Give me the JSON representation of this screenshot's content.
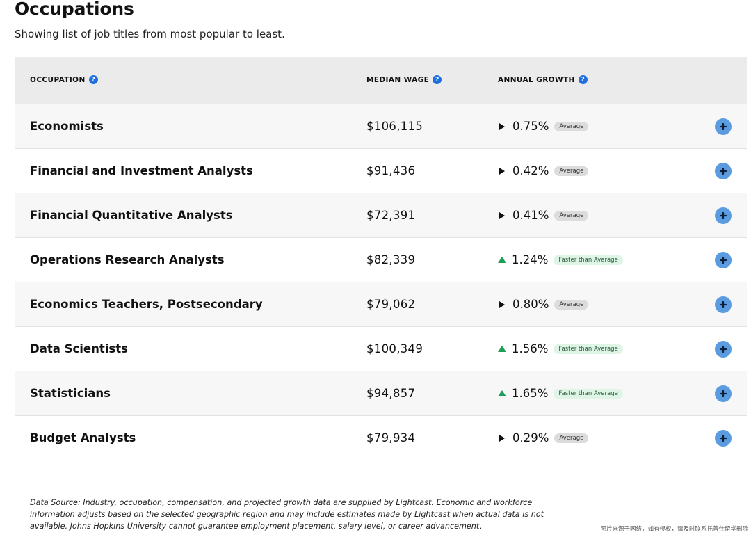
{
  "header": {
    "title": "Occupations",
    "subtitle": "Showing list of job titles from most popular to least."
  },
  "table": {
    "columns": {
      "occupation": "OCCUPATION",
      "median_wage": "MEDIAN WAGE",
      "annual_growth": "ANNUAL GROWTH",
      "help_glyph": "?"
    },
    "rows": [
      {
        "title": "Economists",
        "wage": "$106,115",
        "growth": "0.75%",
        "trend": "flat",
        "badge": "Average"
      },
      {
        "title": "Financial and Investment Analysts",
        "wage": "$91,436",
        "growth": "0.42%",
        "trend": "flat",
        "badge": "Average"
      },
      {
        "title": "Financial Quantitative Analysts",
        "wage": "$72,391",
        "growth": "0.41%",
        "trend": "flat",
        "badge": "Average"
      },
      {
        "title": "Operations Research Analysts",
        "wage": "$82,339",
        "growth": "1.24%",
        "trend": "up",
        "badge": "Faster than Average"
      },
      {
        "title": "Economics Teachers, Postsecondary",
        "wage": "$79,062",
        "growth": "0.80%",
        "trend": "flat",
        "badge": "Average"
      },
      {
        "title": "Data Scientists",
        "wage": "$100,349",
        "growth": "1.56%",
        "trend": "up",
        "badge": "Faster than Average"
      },
      {
        "title": "Statisticians",
        "wage": "$94,857",
        "growth": "1.65%",
        "trend": "up",
        "badge": "Faster than Average"
      },
      {
        "title": "Budget Analysts",
        "wage": "$79,934",
        "growth": "0.29%",
        "trend": "flat",
        "badge": "Average"
      }
    ]
  },
  "footer": {
    "text_before": "Data Source: Industry, occupation, compensation, and projected growth data are supplied by ",
    "link": "Lightcast",
    "text_after": ". Economic and workforce information adjusts based on the selected geographic region and may include estimates made by Lightcast when actual data is not available. Johns Hopkins University cannot guarantee employment placement, salary level, or career advancement."
  },
  "watermark": "图片来源于网络，如有侵权，请及时联系托普仕留学删除",
  "colors": {
    "header_bg": "#ebebeb",
    "row_alt_bg": "#f7f7f7",
    "help_icon": "#1f6fe0",
    "expand_button": "#5b9bdf",
    "growth_up": "#1e9e57",
    "badge_average_bg": "#dcdcdc",
    "badge_faster_bg": "#def5e6"
  },
  "icons": {
    "help": "question-circle-icon",
    "trend_flat": "triangle-right-icon",
    "trend_up": "triangle-up-icon",
    "expand": "plus-circle-icon"
  }
}
